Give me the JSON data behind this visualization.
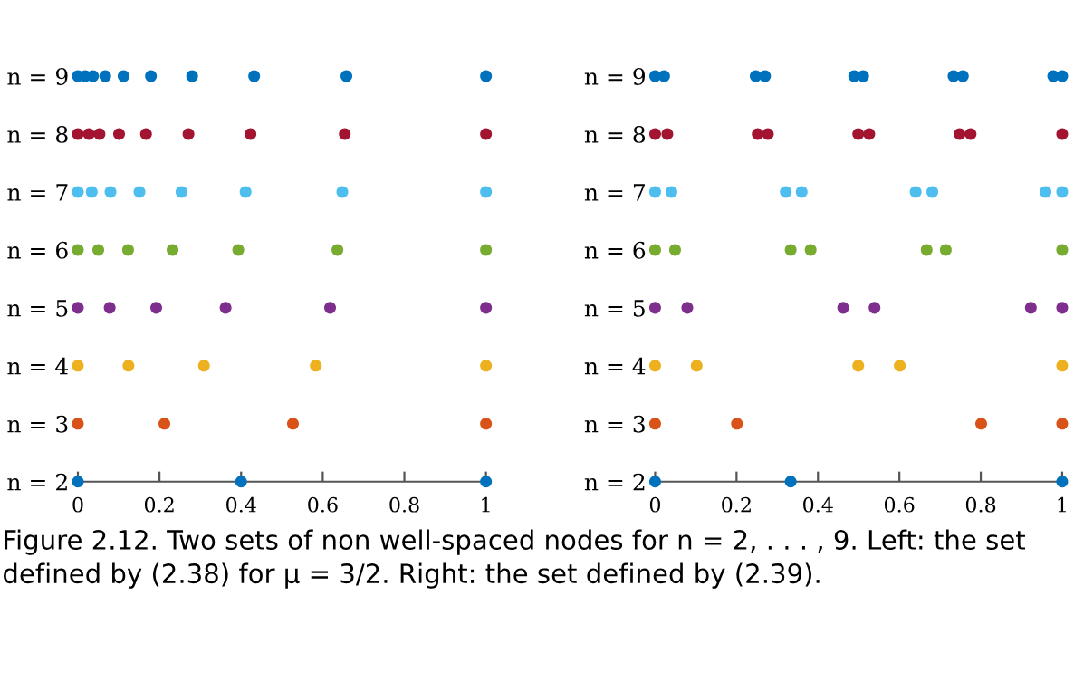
{
  "chart_data": [
    {
      "type": "scatter",
      "marker": "circle",
      "grid": false,
      "xlim": [
        0,
        1
      ],
      "xticks": [
        0,
        0.2,
        0.4,
        0.6,
        0.8,
        1
      ],
      "ylim": [
        2,
        9
      ],
      "yticks": [
        {
          "value": 2,
          "label": "n = 2"
        },
        {
          "value": 3,
          "label": "n = 3"
        },
        {
          "value": 4,
          "label": "n = 4"
        },
        {
          "value": 5,
          "label": "n = 5"
        },
        {
          "value": 6,
          "label": "n = 6"
        },
        {
          "value": 7,
          "label": "n = 7"
        },
        {
          "value": 8,
          "label": "n = 8"
        },
        {
          "value": 9,
          "label": "n = 9"
        }
      ],
      "series": [
        {
          "color": "#0072bd",
          "x": [
            0,
            0.4,
            1
          ],
          "values": [
            2,
            2,
            2
          ]
        },
        {
          "color": "#d95319",
          "x": [
            0,
            0.212,
            0.527,
            1
          ],
          "values": [
            3,
            3,
            3,
            3
          ]
        },
        {
          "color": "#edb120",
          "x": [
            0,
            0.124,
            0.309,
            0.583,
            1
          ],
          "values": [
            4,
            4,
            4,
            4,
            4
          ]
        },
        {
          "color": "#7e2f8e",
          "x": [
            0,
            0.078,
            0.192,
            0.362,
            0.618,
            1
          ],
          "values": [
            5,
            5,
            5,
            5,
            5,
            5
          ]
        },
        {
          "color": "#77ac30",
          "x": [
            0,
            0.05,
            0.123,
            0.232,
            0.393,
            0.636,
            1
          ],
          "values": [
            6,
            6,
            6,
            6,
            6,
            6,
            6
          ]
        },
        {
          "color": "#4dbeee",
          "x": [
            0,
            0.034,
            0.08,
            0.151,
            0.254,
            0.411,
            0.648,
            1
          ],
          "values": [
            7,
            7,
            7,
            7,
            7,
            7,
            7,
            7
          ]
        },
        {
          "color": "#a2142f",
          "x": [
            0,
            0.027,
            0.053,
            0.101,
            0.167,
            0.271,
            0.423,
            0.654,
            1
          ],
          "values": [
            8,
            8,
            8,
            8,
            8,
            8,
            8,
            8,
            8
          ]
        },
        {
          "color": "#0072bd",
          "x": [
            0,
            0.018,
            0.037,
            0.067,
            0.112,
            0.179,
            0.28,
            0.432,
            0.658,
            1
          ],
          "values": [
            9,
            9,
            9,
            9,
            9,
            9,
            9,
            9,
            9,
            9
          ]
        }
      ],
      "annotations": [
        "Figure 2.12. Two sets of non well-spaced nodes for n = 2, . . . , 9. Left: the set defined by (2.38) for μ = 3/2. Right: the set defined by (2.39)."
      ]
    },
    {
      "type": "scatter",
      "marker": "circle",
      "grid": false,
      "xlim": [
        0,
        1
      ],
      "xticks": [
        0,
        0.2,
        0.4,
        0.6,
        0.8,
        1
      ],
      "ylim": [
        2,
        9
      ],
      "yticks": [
        {
          "value": 2,
          "label": "n = 2"
        },
        {
          "value": 3,
          "label": "n = 3"
        },
        {
          "value": 4,
          "label": "n = 4"
        },
        {
          "value": 5,
          "label": "n = 5"
        },
        {
          "value": 6,
          "label": "n = 6"
        },
        {
          "value": 7,
          "label": "n = 7"
        },
        {
          "value": 8,
          "label": "n = 8"
        },
        {
          "value": 9,
          "label": "n = 9"
        }
      ],
      "series": [
        {
          "color": "#0072bd",
          "x": [
            0,
            0.333,
            1
          ],
          "values": [
            2,
            2,
            2
          ]
        },
        {
          "color": "#d95319",
          "x": [
            0,
            0.201,
            0.801,
            1
          ],
          "values": [
            3,
            3,
            3,
            3
          ]
        },
        {
          "color": "#edb120",
          "x": [
            0,
            0.102,
            0.499,
            0.601,
            1
          ],
          "values": [
            4,
            4,
            4,
            4,
            4
          ]
        },
        {
          "color": "#7e2f8e",
          "x": [
            0,
            0.079,
            0.462,
            0.539,
            0.923,
            1
          ],
          "values": [
            5,
            5,
            5,
            5,
            5,
            5
          ]
        },
        {
          "color": "#77ac30",
          "x": [
            0,
            0.049,
            0.333,
            0.382,
            0.667,
            0.714,
            1
          ],
          "values": [
            6,
            6,
            6,
            6,
            6,
            6,
            6
          ]
        },
        {
          "color": "#4dbeee",
          "x": [
            0,
            0.04,
            0.321,
            0.36,
            0.64,
            0.681,
            0.959,
            1
          ],
          "values": [
            7,
            7,
            7,
            7,
            7,
            7,
            7,
            7
          ]
        },
        {
          "color": "#a2142f",
          "x": [
            0,
            0.03,
            0.252,
            0.277,
            0.499,
            0.526,
            0.748,
            0.775,
            1
          ],
          "values": [
            8,
            8,
            8,
            8,
            8,
            8,
            8,
            8,
            8
          ]
        },
        {
          "color": "#0072bd",
          "x": [
            0,
            0.022,
            0.247,
            0.27,
            0.489,
            0.511,
            0.733,
            0.756,
            0.978,
            1
          ],
          "values": [
            9,
            9,
            9,
            9,
            9,
            9,
            9,
            9,
            9,
            9
          ]
        }
      ]
    }
  ]
}
